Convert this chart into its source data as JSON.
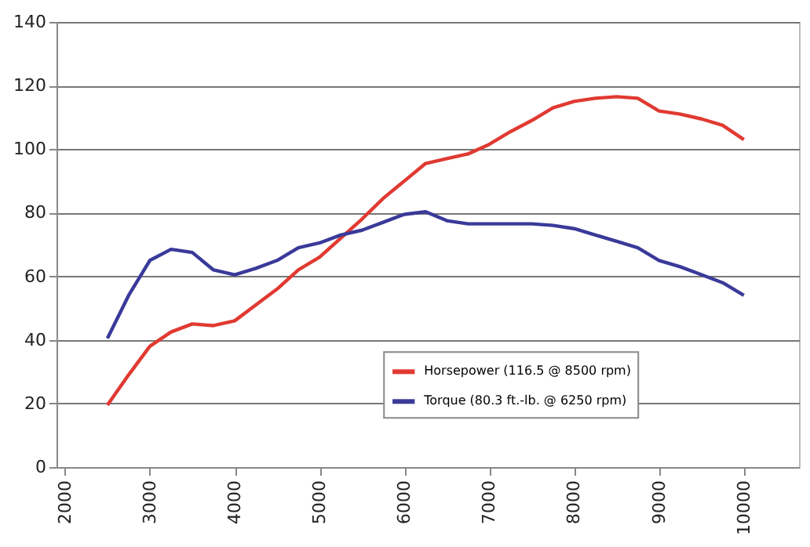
{
  "chart_data": {
    "type": "line",
    "x": [
      2500,
      2750,
      3000,
      3250,
      3500,
      3750,
      4000,
      4250,
      4500,
      4750,
      5000,
      5250,
      5500,
      5750,
      6000,
      6250,
      6500,
      6750,
      7000,
      7250,
      7500,
      7750,
      8000,
      8250,
      8500,
      8750,
      9000,
      9250,
      9500,
      9750,
      10000
    ],
    "series": [
      {
        "name": "Horsepower (116.5 @ 8500 rpm)",
        "color": "#e03a32",
        "values": [
          19.5,
          29,
          38,
          42.5,
          45,
          44.5,
          46,
          51,
          56,
          62,
          66,
          72,
          78,
          84.5,
          90,
          95.5,
          97,
          98.5,
          101.5,
          105.5,
          109,
          113,
          115,
          116,
          116.5,
          116,
          112,
          111,
          109.5,
          107.5,
          103
        ]
      },
      {
        "name": "Torque (80.3 ft.-lb. @ 6250 rpm)",
        "color": "#3a3a9a",
        "values": [
          40.5,
          54,
          65,
          68.5,
          67.5,
          62,
          60.5,
          62.5,
          65,
          69,
          70.5,
          73,
          74.5,
          77,
          79.5,
          80.3,
          77.5,
          76.5,
          76.5,
          76.5,
          76.5,
          76,
          75,
          73,
          71,
          69,
          65,
          63,
          60.5,
          58,
          54
        ]
      }
    ],
    "xlim": [
      1900,
      10650
    ],
    "xticks": [
      2000,
      3000,
      4000,
      5000,
      6000,
      7000,
      8000,
      9000,
      10000
    ],
    "ylim": [
      0,
      140
    ],
    "yticks": [
      0,
      20,
      40,
      60,
      80,
      100,
      120,
      140
    ],
    "grid": "y",
    "legend": "bottom",
    "marker": "none",
    "line_style": "solid"
  }
}
